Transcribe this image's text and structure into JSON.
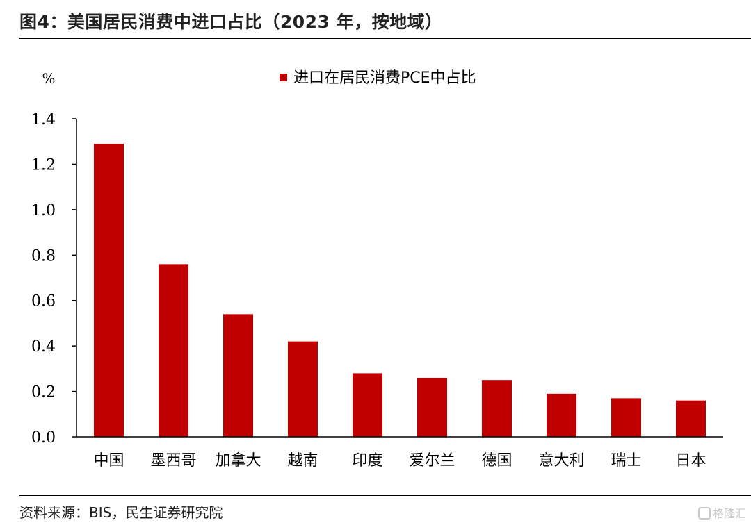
{
  "title": "图4：美国居民消费中进口占比（2023 年，按地域）",
  "source": "资料来源：BIS，民生证券研究院",
  "watermark": "格隆汇",
  "colors": {
    "bar": "#c00000",
    "axis": "#000000"
  },
  "chart_data": {
    "type": "bar",
    "unit_label": "%",
    "legend": "top-center",
    "grid": false,
    "categories": [
      "中国",
      "墨西哥",
      "加拿大",
      "越南",
      "印度",
      "爱尔兰",
      "德国",
      "意大利",
      "瑞士",
      "日本"
    ],
    "series": [
      {
        "name": "进口在居民消费PCE中占比",
        "values": [
          1.29,
          0.76,
          0.54,
          0.42,
          0.28,
          0.26,
          0.25,
          0.19,
          0.17,
          0.16
        ]
      }
    ],
    "ylim": [
      0,
      1.4
    ],
    "yticks": [
      "0.0",
      "0.2",
      "0.4",
      "0.6",
      "0.8",
      "1.0",
      "1.2",
      "1.4"
    ]
  }
}
